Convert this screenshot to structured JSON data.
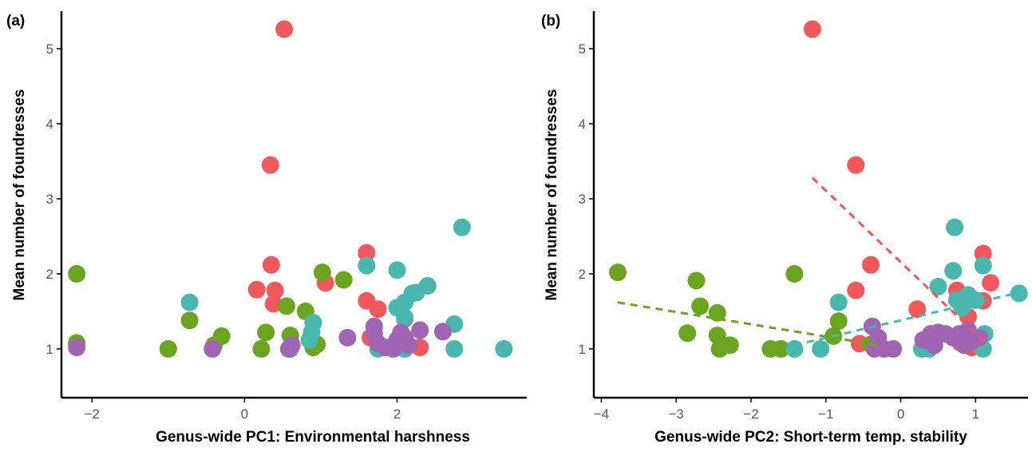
{
  "colors": {
    "red": "#F0585B",
    "green": "#6BA51F",
    "teal": "#48B8AE",
    "purple": "#A064B4",
    "axis": "#000000"
  },
  "chart_data": [
    {
      "type": "scatter",
      "panel_label": "(a)",
      "xlabel": "Genus-wide PC1: Environmental harshness",
      "ylabel": "Mean number of foundresses",
      "xlim": [
        -2.4,
        3.7
      ],
      "ylim": [
        0.35,
        5.5
      ],
      "xticks": [
        -2,
        0,
        2
      ],
      "yticks": [
        1,
        2,
        3,
        4,
        5
      ],
      "grid": false,
      "legend": "none",
      "series": [
        {
          "color": "red",
          "points": [
            [
              0.52,
              5.26
            ],
            [
              0.34,
              3.45
            ],
            [
              0.35,
              2.12
            ],
            [
              0.16,
              1.79
            ],
            [
              0.4,
              1.78
            ],
            [
              0.38,
              1.6
            ],
            [
              1.06,
              1.88
            ],
            [
              1.6,
              2.28
            ],
            [
              1.6,
              1.64
            ],
            [
              1.75,
              1.53
            ],
            [
              2.1,
              1.4
            ],
            [
              1.65,
              1.15
            ],
            [
              2.3,
              1.02
            ],
            [
              2.15,
              1.05
            ]
          ]
        },
        {
          "color": "green",
          "points": [
            [
              -2.2,
              2.0
            ],
            [
              -2.2,
              1.08
            ],
            [
              -1.0,
              1.0
            ],
            [
              -0.72,
              1.38
            ],
            [
              -0.4,
              1.05
            ],
            [
              -0.3,
              1.17
            ],
            [
              0.22,
              1.0
            ],
            [
              0.28,
              1.22
            ],
            [
              0.55,
              1.57
            ],
            [
              0.6,
              1.18
            ],
            [
              0.8,
              1.5
            ],
            [
              0.9,
              1.02
            ],
            [
              0.95,
              1.06
            ],
            [
              1.02,
              2.02
            ],
            [
              1.3,
              1.92
            ]
          ]
        },
        {
          "color": "teal",
          "points": [
            [
              -0.72,
              1.62
            ],
            [
              0.6,
              1.0
            ],
            [
              0.85,
              1.12
            ],
            [
              0.9,
              1.35
            ],
            [
              0.88,
              1.22
            ],
            [
              1.6,
              2.11
            ],
            [
              2.0,
              2.05
            ],
            [
              2.0,
              1.55
            ],
            [
              2.1,
              1.62
            ],
            [
              2.2,
              1.74
            ],
            [
              2.25,
              1.75
            ],
            [
              2.4,
              1.84
            ],
            [
              2.1,
              1.42
            ],
            [
              2.85,
              2.62
            ],
            [
              2.75,
              1.33
            ],
            [
              2.75,
              1.0
            ],
            [
              3.4,
              1.0
            ],
            [
              1.75,
              1.0
            ],
            [
              2.1,
              1.0
            ]
          ]
        },
        {
          "color": "purple",
          "points": [
            [
              -2.2,
              1.02
            ],
            [
              -0.42,
              1.0
            ],
            [
              0.62,
              1.05
            ],
            [
              0.58,
              1.0
            ],
            [
              1.35,
              1.15
            ],
            [
              1.7,
              1.3
            ],
            [
              1.7,
              1.2
            ],
            [
              1.75,
              1.07
            ],
            [
              1.85,
              1.02
            ],
            [
              1.95,
              1.0
            ],
            [
              2.0,
              1.12
            ],
            [
              2.05,
              1.22
            ],
            [
              2.1,
              1.15
            ],
            [
              2.15,
              1.05
            ],
            [
              2.3,
              1.25
            ],
            [
              2.6,
              1.23
            ]
          ]
        }
      ],
      "trend_lines": []
    },
    {
      "type": "scatter",
      "panel_label": "(b)",
      "xlabel": "Genus-wide PC2: Short-term temp. stability",
      "ylabel": "Mean number of foundresses",
      "xlim": [
        -4.1,
        1.7
      ],
      "ylim": [
        0.35,
        5.5
      ],
      "xticks": [
        -4,
        -3,
        -2,
        -1,
        0,
        1
      ],
      "yticks": [
        1,
        2,
        3,
        4,
        5
      ],
      "grid": false,
      "legend": "none",
      "series": [
        {
          "color": "red",
          "points": [
            [
              -1.18,
              5.26
            ],
            [
              -0.6,
              3.45
            ],
            [
              -0.4,
              2.12
            ],
            [
              -0.6,
              1.78
            ],
            [
              0.22,
              1.53
            ],
            [
              1.1,
              2.27
            ],
            [
              1.2,
              1.88
            ],
            [
              1.1,
              1.64
            ],
            [
              0.75,
              1.78
            ],
            [
              0.9,
              1.43
            ],
            [
              -0.55,
              1.07
            ],
            [
              0.95,
              1.02
            ],
            [
              0.8,
              1.08
            ]
          ]
        },
        {
          "color": "green",
          "points": [
            [
              -3.78,
              2.02
            ],
            [
              -2.73,
              1.91
            ],
            [
              -2.68,
              1.57
            ],
            [
              -2.45,
              1.48
            ],
            [
              -2.85,
              1.21
            ],
            [
              -2.45,
              1.18
            ],
            [
              -2.42,
              1.0
            ],
            [
              -2.28,
              1.05
            ],
            [
              -1.74,
              1.0
            ],
            [
              -1.6,
              1.0
            ],
            [
              -1.42,
              2.0
            ],
            [
              -0.83,
              1.37
            ],
            [
              -0.9,
              1.17
            ],
            [
              -0.4,
              1.06
            ]
          ]
        },
        {
          "color": "teal",
          "points": [
            [
              -1.42,
              1.0
            ],
            [
              -1.07,
              1.0
            ],
            [
              -0.83,
              1.62
            ],
            [
              0.28,
              1.0
            ],
            [
              0.38,
              1.0
            ],
            [
              0.5,
              1.83
            ],
            [
              0.72,
              2.62
            ],
            [
              0.7,
              2.04
            ],
            [
              0.75,
              1.65
            ],
            [
              0.82,
              1.55
            ],
            [
              0.9,
              1.72
            ],
            [
              1.0,
              1.65
            ],
            [
              1.1,
              2.11
            ],
            [
              1.12,
              1.2
            ],
            [
              1.1,
              1.0
            ],
            [
              1.58,
              1.74
            ]
          ]
        },
        {
          "color": "purple",
          "points": [
            [
              -0.38,
              1.3
            ],
            [
              -0.3,
              1.15
            ],
            [
              -0.35,
              1.0
            ],
            [
              -0.22,
              1.0
            ],
            [
              -0.1,
              1.0
            ],
            [
              0.3,
              1.12
            ],
            [
              0.4,
              1.2
            ],
            [
              0.45,
              1.05
            ],
            [
              0.5,
              1.22
            ],
            [
              0.6,
              1.2
            ],
            [
              0.7,
              1.15
            ],
            [
              0.78,
              1.2
            ],
            [
              0.85,
              1.05
            ],
            [
              0.9,
              1.25
            ],
            [
              0.95,
              1.1
            ],
            [
              1.05,
              1.15
            ]
          ]
        }
      ],
      "trend_lines": [
        {
          "color": "red",
          "x": [
            -1.18,
            1.15
          ],
          "y": [
            3.28,
            1.06
          ]
        },
        {
          "color": "green",
          "x": [
            -3.78,
            -0.3
          ],
          "y": [
            1.62,
            1.05
          ]
        },
        {
          "color": "teal",
          "x": [
            -1.42,
            1.58
          ],
          "y": [
            1.05,
            1.75
          ]
        }
      ]
    }
  ]
}
